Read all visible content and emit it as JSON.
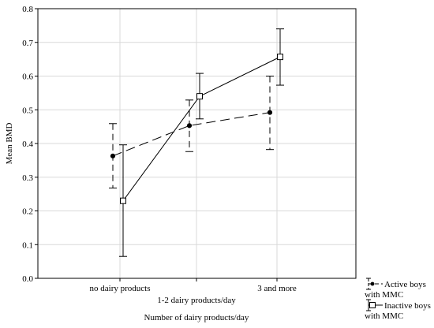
{
  "chart_data": {
    "type": "line",
    "xlabel": "Number of dairy products/day",
    "ylabel": "Mean BMD",
    "categories": [
      "no dairy products",
      "1-2 dairy products/day",
      "3 and more"
    ],
    "ylim": [
      0,
      0.8
    ],
    "yticks": [
      "0.0",
      "0.1",
      "0.2",
      "0.3",
      "0.4",
      "0.5",
      "0.6",
      "0.7",
      "0.8"
    ],
    "grid": true,
    "legend_position": "bottom-right",
    "series": [
      {
        "name": "Active boys with MMC",
        "name_lines": [
          "Active boys",
          "with MMC"
        ],
        "marker": "filled-circle",
        "line_style": "dashed",
        "values": [
          0.363,
          0.453,
          0.492
        ],
        "lower": [
          0.268,
          0.376,
          0.382
        ],
        "upper": [
          0.459,
          0.529,
          0.6
        ]
      },
      {
        "name": "Inactive boys with MMC",
        "name_lines": [
          "Inactive boys",
          "with MMC"
        ],
        "marker": "open-square",
        "line_style": "solid",
        "values": [
          0.23,
          0.54,
          0.657
        ],
        "lower": [
          0.065,
          0.473,
          0.573
        ],
        "upper": [
          0.396,
          0.608,
          0.74
        ]
      }
    ]
  }
}
